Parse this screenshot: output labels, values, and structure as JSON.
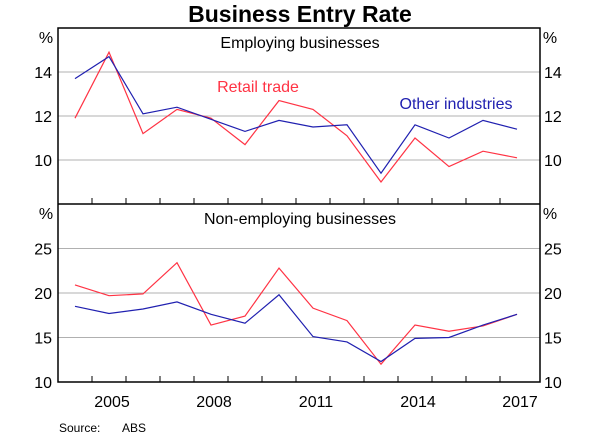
{
  "chart_data": {
    "type": "line",
    "title": "Business Entry Rate",
    "source_label": "Source:",
    "source_value": "ABS",
    "x": [
      2004,
      2005,
      2006,
      2007,
      2008,
      2009,
      2010,
      2011,
      2012,
      2013,
      2014,
      2015,
      2016,
      2017
    ],
    "x_tick_labels": [
      "2005",
      "2008",
      "2011",
      "2014",
      "2017"
    ],
    "x_ticks": [
      2005,
      2008,
      2011,
      2014,
      2017
    ],
    "colors": {
      "retail": "#ff3344",
      "other": "#2020b0",
      "grid": "#b0b0b0"
    },
    "panels": [
      {
        "title": "Employing businesses",
        "unit": "%",
        "ylim": [
          8,
          16
        ],
        "y_ticks": [
          10,
          12,
          14
        ],
        "y_tick_labels": [
          "10",
          "12",
          "14"
        ],
        "annotations": [
          "Retail trade",
          "Other industries"
        ],
        "series": [
          {
            "name": "Retail trade",
            "values": [
              11.9,
              14.9,
              11.2,
              12.3,
              11.9,
              10.7,
              12.7,
              12.3,
              11.1,
              9.0,
              11.0,
              9.7,
              10.4,
              10.1
            ]
          },
          {
            "name": "Other industries",
            "values": [
              13.7,
              14.7,
              12.1,
              12.4,
              11.85,
              11.3,
              11.8,
              11.5,
              11.6,
              9.4,
              11.6,
              11.0,
              11.8,
              11.4
            ]
          }
        ]
      },
      {
        "title": "Non-employing businesses",
        "unit": "%",
        "ylim": [
          10,
          30
        ],
        "y_ticks": [
          10,
          15,
          20,
          25
        ],
        "y_tick_labels": [
          "10",
          "15",
          "20",
          "25"
        ],
        "series": [
          {
            "name": "Retail trade",
            "values": [
              20.9,
              19.7,
              19.9,
              23.4,
              16.4,
              17.4,
              22.8,
              18.3,
              16.9,
              12.0,
              16.4,
              15.7,
              16.3,
              17.6
            ]
          },
          {
            "name": "Other industries",
            "values": [
              18.5,
              17.7,
              18.2,
              19.0,
              17.6,
              16.6,
              19.8,
              15.1,
              14.5,
              12.3,
              14.9,
              15.0,
              16.4,
              17.6
            ]
          }
        ]
      }
    ]
  }
}
